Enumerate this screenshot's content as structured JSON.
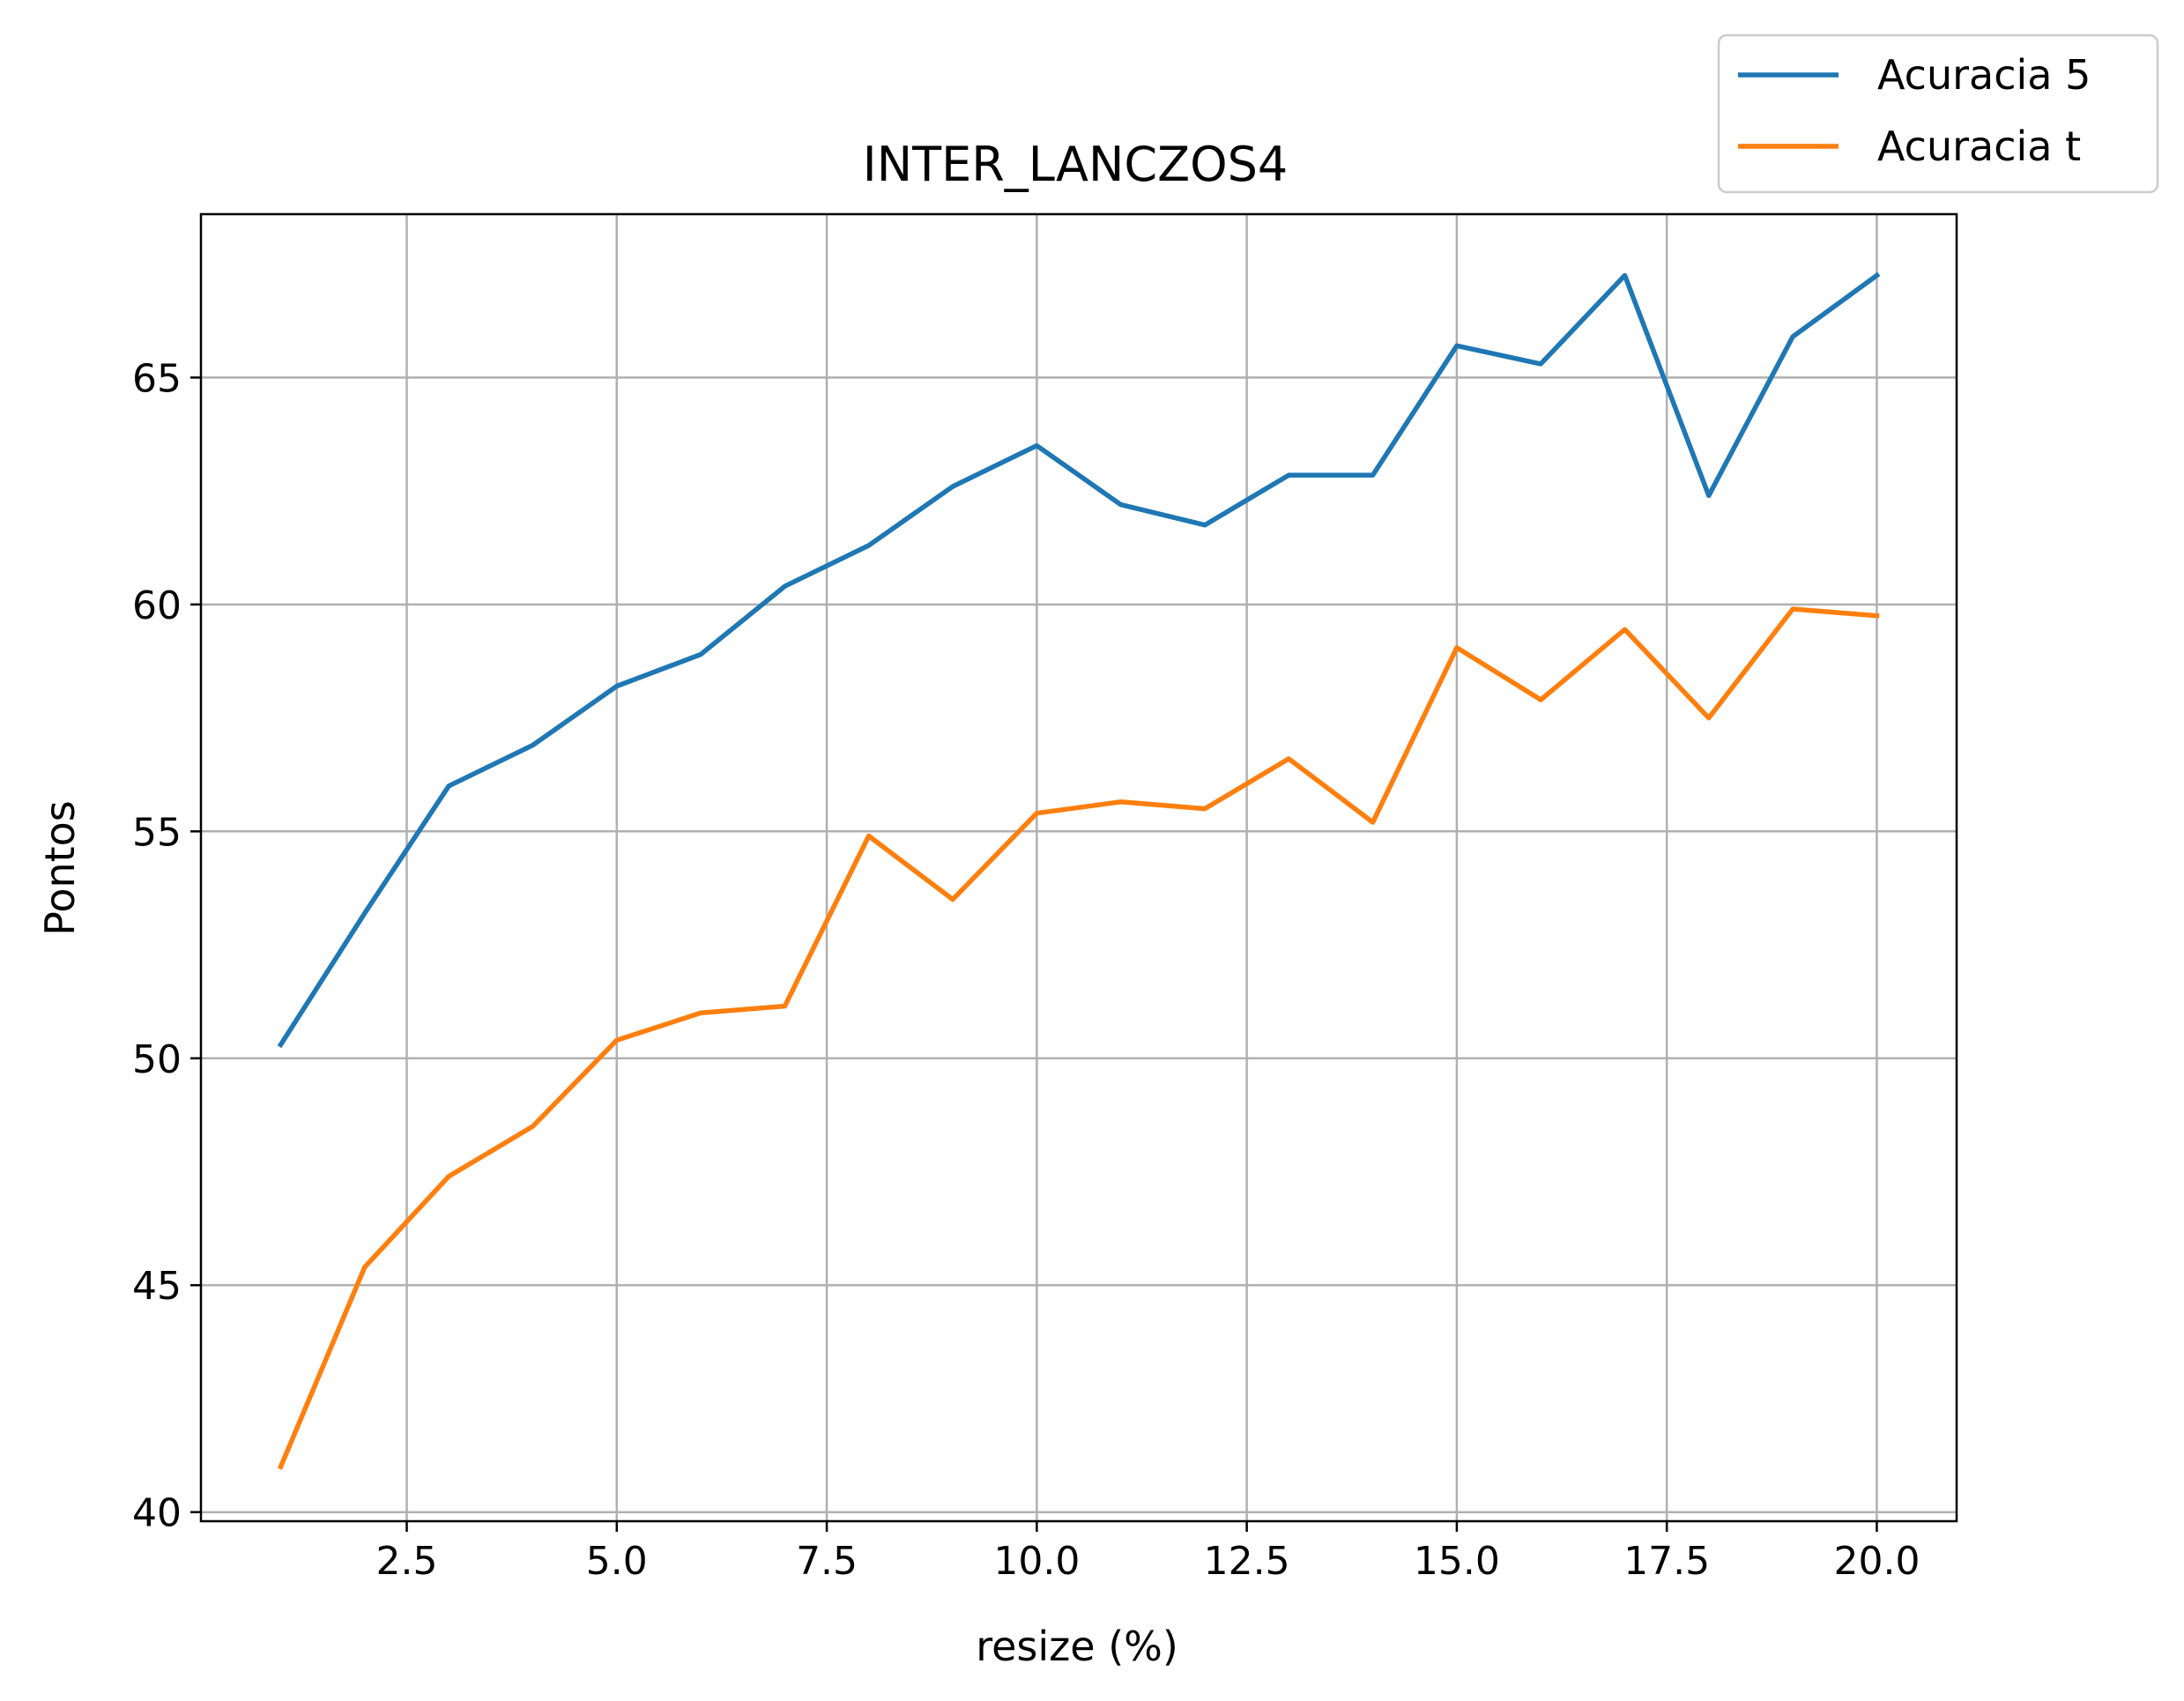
{
  "chart_data": {
    "type": "line",
    "title": "INTER_LANCZOS4",
    "xlabel": "resize (%)",
    "ylabel": "Pontos",
    "xlim": [
      0.05,
      20.95
    ],
    "ylim": [
      39.8,
      68.6
    ],
    "xticks": [
      2.5,
      5.0,
      7.5,
      10.0,
      12.5,
      15.0,
      17.5,
      20.0
    ],
    "xtick_labels": [
      "2.5",
      "5.0",
      "7.5",
      "10.0",
      "12.5",
      "15.0",
      "17.5",
      "20.0"
    ],
    "yticks": [
      40,
      45,
      50,
      55,
      60,
      65
    ],
    "ytick_labels": [
      "40",
      "45",
      "50",
      "55",
      "60",
      "65"
    ],
    "grid": true,
    "legend_position": "top-right, outside plot",
    "x": [
      1,
      2,
      3,
      4,
      5,
      6,
      7,
      8,
      9,
      10,
      11,
      12,
      13,
      14,
      15,
      16,
      17,
      18,
      19,
      20
    ],
    "series": [
      {
        "name": "Acuracia 5",
        "color": "#1f77b4",
        "values": [
          50.3,
          53.2,
          56.0,
          56.9,
          58.2,
          58.9,
          60.4,
          61.3,
          62.6,
          63.5,
          62.2,
          61.75,
          62.85,
          62.85,
          65.7,
          65.3,
          67.25,
          62.4,
          65.9,
          67.25
        ]
      },
      {
        "name": "Acuracia t",
        "color": "#ff7f0e",
        "values": [
          41.0,
          45.4,
          47.4,
          48.5,
          50.4,
          51.0,
          51.15,
          54.9,
          53.5,
          55.4,
          55.65,
          55.5,
          56.6,
          55.2,
          59.05,
          57.9,
          59.45,
          57.5,
          59.9,
          59.75
        ]
      }
    ]
  }
}
